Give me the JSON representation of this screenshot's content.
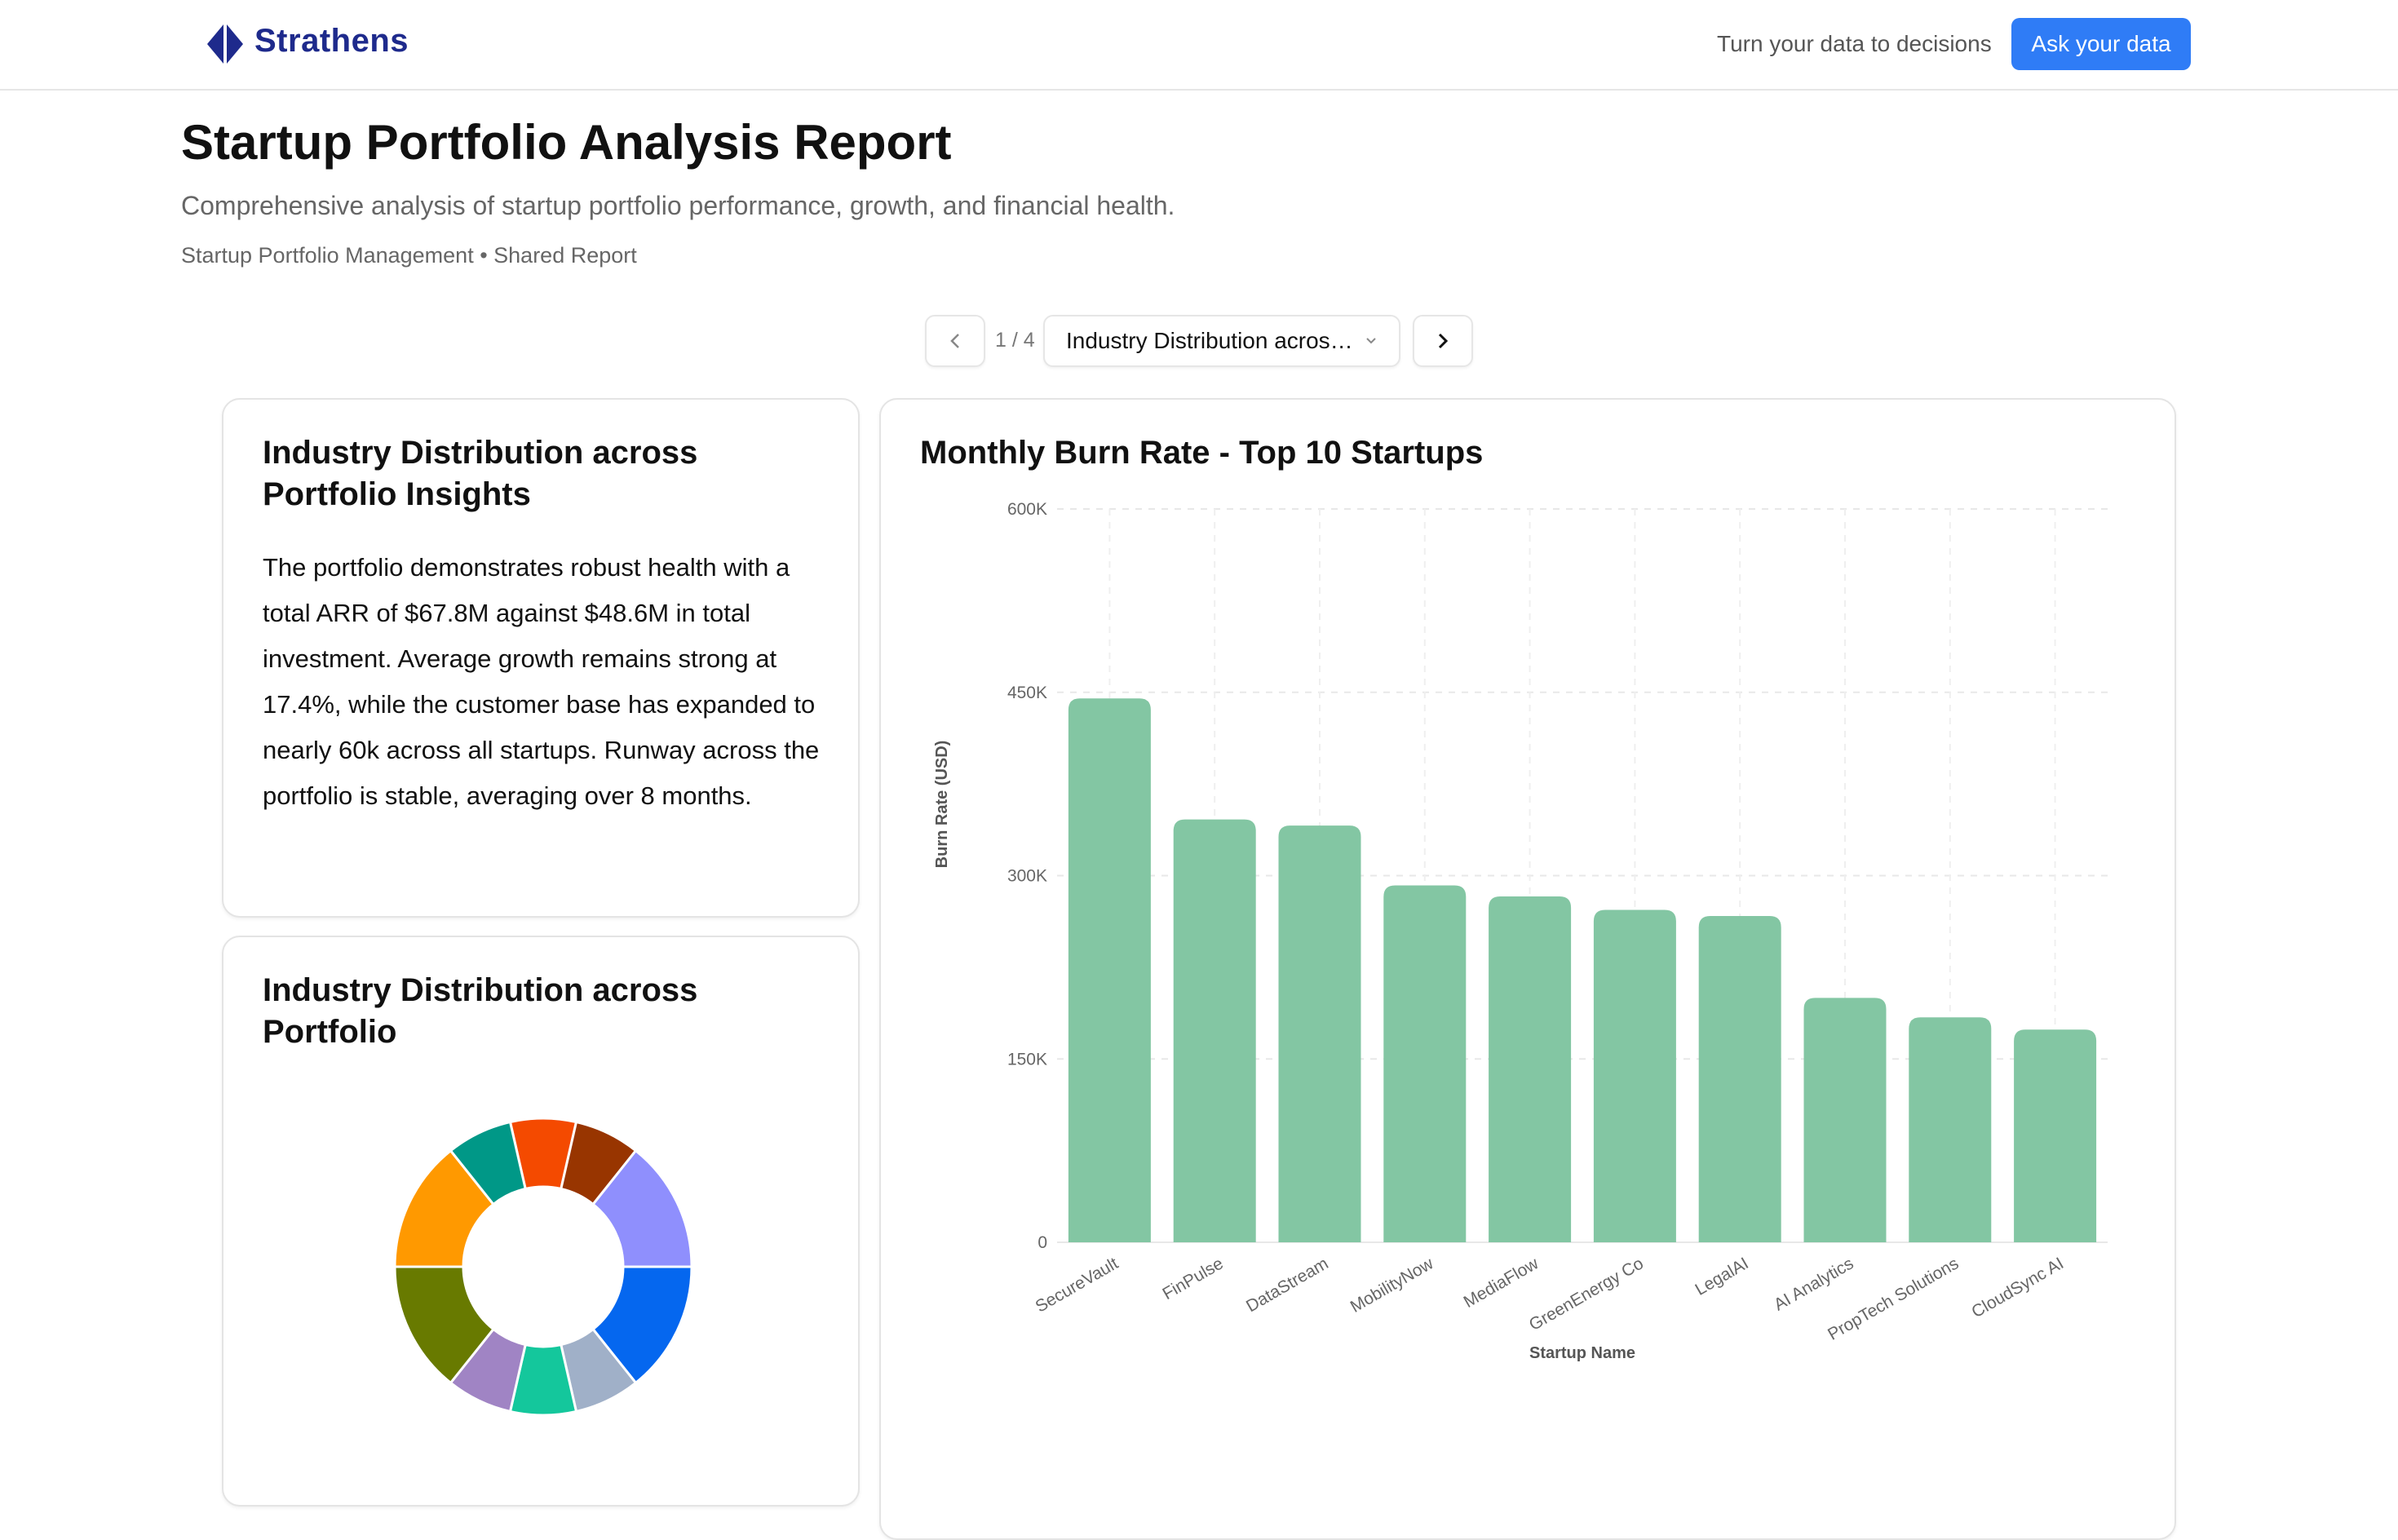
{
  "header": {
    "brand": "Strathens",
    "tagline": "Turn your data to decisions",
    "ask_button": "Ask your data",
    "brand_color": "#1e2a8c",
    "accent_color": "#2f7cf6"
  },
  "report": {
    "title": "Startup Portfolio Analysis Report",
    "subtitle": "Comprehensive analysis of startup portfolio performance, growth, and financial health.",
    "meta": "Startup Portfolio Management • Shared Report"
  },
  "pager": {
    "prev_icon": "chevron-left-icon",
    "next_icon": "chevron-right-icon",
    "indicator": "1 / 4",
    "selected": "Industry Distribution acros…"
  },
  "insight_card": {
    "title": "Industry Distribution across Portfolio Insights",
    "body": "The portfolio demonstrates robust health with a total ARR of $67.8M against $48.6M in total investment. Average growth remains strong at 17.4%, while the customer base has expanded to nearly 60k across all startups. Runway across the portfolio is stable, averaging over 8 months."
  },
  "chart_data": [
    {
      "type": "pie",
      "title": "Industry Distribution across Portfolio",
      "donut": true,
      "values": [
        1,
        1,
        2,
        2,
        1,
        1,
        1,
        2,
        2,
        1
      ],
      "colors": [
        "#f44a00",
        "#983500",
        "#8f8ffd",
        "#0567ef",
        "#a0b0c8",
        "#14c79c",
        "#a084c4",
        "#687a00",
        "#ff9900",
        "#009887"
      ]
    },
    {
      "type": "bar",
      "title": "Monthly Burn Rate - Top 10 Startups",
      "xlabel": "Startup Name",
      "ylabel": "Burn Rate (USD)",
      "ylim": [
        0,
        600000
      ],
      "yticks": [
        0,
        150000,
        300000,
        450000,
        600000
      ],
      "ytick_labels": [
        "0",
        "150K",
        "300K",
        "450K",
        "600K"
      ],
      "grid": true,
      "color": "#83c6a3",
      "categories": [
        "SecureVault",
        "FinPulse",
        "DataStream",
        "MobilityNow",
        "MediaFlow",
        "GreenEnergy Co",
        "LegalAI",
        "AI Analytics",
        "PropTech Solutions",
        "CloudSync AI"
      ],
      "values": [
        445000,
        346000,
        341000,
        292000,
        283000,
        272000,
        267000,
        200000,
        184000,
        174000
      ]
    }
  ]
}
